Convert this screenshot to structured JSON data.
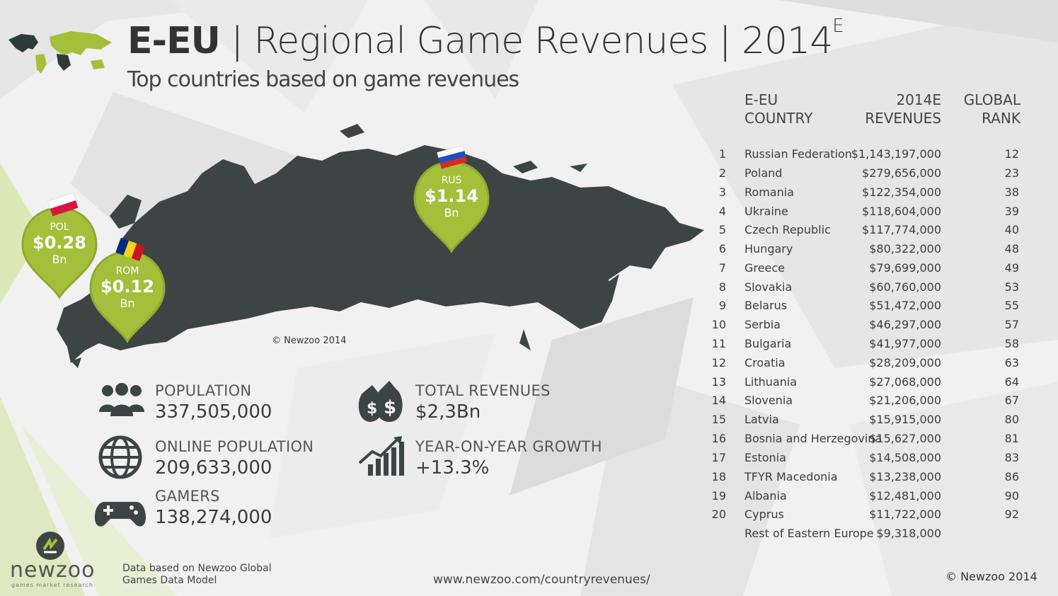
{
  "header": {
    "title_prefix": "E-EU",
    "title_rest": " | Regional Game Revenues | 2014",
    "title_sup": "E",
    "subtitle": "Top countries based on game revenues"
  },
  "map": {
    "copyright": "© Newzoo 2014",
    "pins": [
      {
        "code": "RUS",
        "amount": "$1.14",
        "unit": "Bn"
      },
      {
        "code": "POL",
        "amount": "$0.28",
        "unit": "Bn"
      },
      {
        "code": "ROM",
        "amount": "$0.12",
        "unit": "Bn"
      }
    ]
  },
  "stats": {
    "population": {
      "label": "POPULATION",
      "value": "337,505,000",
      "icon": "people-icon"
    },
    "online_population": {
      "label": "ONLINE POPULATION",
      "value": "209,633,000",
      "icon": "globe-icon"
    },
    "gamers": {
      "label": "GAMERS",
      "value": "138,274,000",
      "icon": "gamepad-icon"
    },
    "total_revenues": {
      "label": "TOTAL REVENUES",
      "value": "$2,3Bn",
      "icon": "money-bags-icon"
    },
    "growth": {
      "label": "YEAR-ON-YEAR GROWTH",
      "value": "+13.3%",
      "icon": "growth-chart-icon"
    }
  },
  "table": {
    "headers": {
      "country_line1": "E-EU",
      "country_line2": "COUNTRY",
      "revenue_line1": "2014E",
      "revenue_line2": "REVENUES",
      "rank_line1": "GLOBAL",
      "rank_line2": "RANK"
    },
    "rows": [
      {
        "rank": "1",
        "country": "Russian Federation",
        "revenue": "$1,143,197,000",
        "global": "12"
      },
      {
        "rank": "2",
        "country": "Poland",
        "revenue": "$279,656,000",
        "global": "23"
      },
      {
        "rank": "3",
        "country": "Romania",
        "revenue": "$122,354,000",
        "global": "38"
      },
      {
        "rank": "4",
        "country": "Ukraine",
        "revenue": "$118,604,000",
        "global": "39"
      },
      {
        "rank": "5",
        "country": "Czech Republic",
        "revenue": "$117,774,000",
        "global": "40"
      },
      {
        "rank": "6",
        "country": "Hungary",
        "revenue": "$80,322,000",
        "global": "48"
      },
      {
        "rank": "7",
        "country": "Greece",
        "revenue": "$79,699,000",
        "global": "49"
      },
      {
        "rank": "8",
        "country": "Slovakia",
        "revenue": "$60,760,000",
        "global": "53"
      },
      {
        "rank": "9",
        "country": "Belarus",
        "revenue": "$51,472,000",
        "global": "55"
      },
      {
        "rank": "10",
        "country": "Serbia",
        "revenue": "$46,297,000",
        "global": "57"
      },
      {
        "rank": "11",
        "country": "Bulgaria",
        "revenue": "$41,977,000",
        "global": "58"
      },
      {
        "rank": "12",
        "country": "Croatia",
        "revenue": "$28,209,000",
        "global": "63"
      },
      {
        "rank": "13",
        "country": "Lithuania",
        "revenue": "$27,068,000",
        "global": "64"
      },
      {
        "rank": "14",
        "country": "Slovenia",
        "revenue": "$21,206,000",
        "global": "67"
      },
      {
        "rank": "15",
        "country": "Latvia",
        "revenue": "$15,915,000",
        "global": "80"
      },
      {
        "rank": "16",
        "country": "Bosnia and Herzegovina",
        "revenue": "$15,627,000",
        "global": "81"
      },
      {
        "rank": "17",
        "country": "Estonia",
        "revenue": "$14,508,000",
        "global": "83"
      },
      {
        "rank": "18",
        "country": "TFYR Macedonia",
        "revenue": "$13,238,000",
        "global": "86"
      },
      {
        "rank": "19",
        "country": "Albania",
        "revenue": "$12,481,000",
        "global": "90"
      },
      {
        "rank": "20",
        "country": "Cyprus",
        "revenue": "$11,722,000",
        "global": "92"
      },
      {
        "rank": "",
        "country": "Rest of Eastern Europe",
        "revenue": "$9,318,000",
        "global": ""
      }
    ]
  },
  "footer": {
    "brand": "newzoo",
    "brand_tagline": "games market research",
    "note_line1": "Data based on Newzoo Global",
    "note_line2": "Games Data Model",
    "url": "www.newzoo.com/countryrevenues/",
    "copyright": "© Newzoo 2014"
  },
  "colors": {
    "accent_green": "#a4bf3a",
    "map_dark": "#3d4444",
    "text_dark": "#3c3c3c"
  }
}
